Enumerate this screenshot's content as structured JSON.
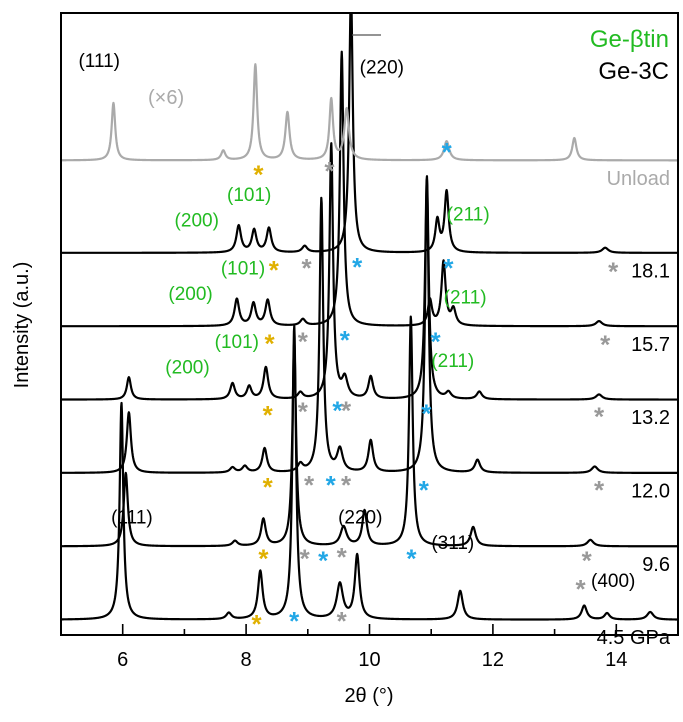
{
  "chart_data": {
    "type": "line",
    "xlabel": "2θ (°)",
    "ylabel": "Intensity (a.u.)",
    "xlim": [
      5,
      15
    ],
    "ylim": [
      -0.2,
      9.55
    ],
    "xticks": [
      6,
      8,
      10,
      12,
      14
    ],
    "grid": false,
    "legend": [
      {
        "label": "Ge-βtin",
        "color": "#22bb22"
      },
      {
        "label": "Ge-3C",
        "color": "#000000"
      }
    ],
    "scale_note": "(×6)",
    "marker_symbol": "*",
    "colors": {
      "unload": "#aaaaaa",
      "pressure": "#000000",
      "betatin_label": "#22bb22",
      "marker_yellow": "#e0b000",
      "marker_gray": "#999999",
      "marker_blue": "#22a7e6"
    },
    "series": [
      {
        "name": "4.5 GPa",
        "offset": 0.0,
        "color": "#000000",
        "baseline": 0.04,
        "peaks": [
          [
            5.98,
            3.4,
            0.035
          ],
          [
            7.72,
            0.1,
            0.05
          ],
          [
            8.23,
            0.75,
            0.045
          ],
          [
            8.78,
            4.6,
            0.035
          ],
          [
            9.52,
            0.55,
            0.06
          ],
          [
            9.8,
            1.0,
            0.045
          ],
          [
            11.47,
            0.45,
            0.05
          ],
          [
            13.48,
            0.22,
            0.05
          ],
          [
            13.85,
            0.1,
            0.05
          ],
          [
            14.55,
            0.12,
            0.06
          ]
        ],
        "peak_labels": [
          {
            "text": "(111)",
            "x": 6.15,
            "y": 1.55,
            "color": "#000000"
          },
          {
            "text": "(220)",
            "x": 9.85,
            "y": 1.55,
            "color": "#000000"
          },
          {
            "text": "(311)",
            "x": 11.35,
            "y": 1.15,
            "color": "#000000"
          },
          {
            "text": "(400)",
            "x": 13.95,
            "y": 0.55,
            "color": "#000000"
          }
        ],
        "markers": [
          {
            "x": 8.17,
            "y": 0.05,
            "c": "yellow"
          },
          {
            "x": 8.78,
            "y": 0.1,
            "c": "blue"
          },
          {
            "x": 9.55,
            "y": 0.1,
            "c": "gray"
          },
          {
            "x": 13.42,
            "y": 0.6,
            "c": "gray"
          }
        ]
      },
      {
        "name": "9.6",
        "offset": 1.15,
        "color": "#000000",
        "baseline": 0.04,
        "peaks": [
          [
            6.05,
            1.15,
            0.04
          ],
          [
            7.82,
            0.08,
            0.05
          ],
          [
            8.28,
            0.42,
            0.045
          ],
          [
            8.78,
            3.2,
            0.035
          ],
          [
            9.58,
            0.3,
            0.06
          ],
          [
            9.92,
            0.55,
            0.045
          ],
          [
            10.67,
            3.6,
            0.035
          ],
          [
            11.68,
            0.3,
            0.05
          ],
          [
            13.58,
            0.1,
            0.06
          ]
        ],
        "peak_labels": [],
        "markers": [
          {
            "x": 8.28,
            "y": 1.08,
            "c": "yellow"
          },
          {
            "x": 8.95,
            "y": 1.08,
            "c": "gray"
          },
          {
            "x": 9.25,
            "y": 1.05,
            "c": "blue"
          },
          {
            "x": 9.55,
            "y": 1.1,
            "c": "gray"
          },
          {
            "x": 10.68,
            "y": 1.08,
            "c": "blue"
          },
          {
            "x": 13.52,
            "y": 1.05,
            "c": "gray"
          }
        ]
      },
      {
        "name": "12.0",
        "offset": 2.3,
        "color": "#000000",
        "baseline": 0.04,
        "peaks": [
          [
            6.1,
            0.95,
            0.04
          ],
          [
            7.78,
            0.08,
            0.05
          ],
          [
            7.98,
            0.1,
            0.05
          ],
          [
            8.3,
            0.38,
            0.045
          ],
          [
            8.88,
            0.12,
            0.05
          ],
          [
            9.22,
            4.3,
            0.035
          ],
          [
            9.52,
            0.35,
            0.055
          ],
          [
            10.02,
            0.5,
            0.045
          ],
          [
            10.93,
            4.6,
            0.035
          ],
          [
            11.75,
            0.2,
            0.05
          ],
          [
            13.65,
            0.1,
            0.06
          ]
        ],
        "peak_labels": [],
        "markers": [
          {
            "x": 8.35,
            "y": 2.2,
            "c": "yellow"
          },
          {
            "x": 9.02,
            "y": 2.23,
            "c": "gray"
          },
          {
            "x": 9.37,
            "y": 2.23,
            "c": "blue"
          },
          {
            "x": 9.62,
            "y": 2.23,
            "c": "gray"
          },
          {
            "x": 10.88,
            "y": 2.15,
            "c": "blue"
          },
          {
            "x": 13.72,
            "y": 2.15,
            "c": "gray"
          }
        ]
      },
      {
        "name": "13.2",
        "offset": 3.45,
        "color": "#000000",
        "baseline": 0.04,
        "peaks": [
          [
            6.1,
            0.35,
            0.04
          ],
          [
            7.78,
            0.25,
            0.045
          ],
          [
            8.05,
            0.2,
            0.045
          ],
          [
            8.32,
            0.5,
            0.045
          ],
          [
            8.88,
            0.1,
            0.05
          ],
          [
            9.38,
            4.0,
            0.035
          ],
          [
            9.6,
            0.3,
            0.055
          ],
          [
            10.02,
            0.35,
            0.045
          ],
          [
            10.93,
            3.5,
            0.035
          ],
          [
            11.28,
            0.1,
            0.05
          ],
          [
            11.78,
            0.12,
            0.05
          ],
          [
            13.72,
            0.08,
            0.06
          ]
        ],
        "peak_labels": [
          {
            "text": "(200)",
            "x": 7.05,
            "y": 3.9,
            "color": "#22bb22"
          },
          {
            "text": "(101)",
            "x": 7.85,
            "y": 4.3,
            "color": "#22bb22"
          },
          {
            "text": "(211)",
            "x": 11.35,
            "y": 4.0,
            "color": "#22bb22"
          }
        ],
        "markers": [
          {
            "x": 8.35,
            "y": 3.33,
            "c": "yellow"
          },
          {
            "x": 8.92,
            "y": 3.38,
            "c": "gray"
          },
          {
            "x": 9.48,
            "y": 3.4,
            "c": "blue"
          },
          {
            "x": 9.62,
            "y": 3.4,
            "c": "gray"
          },
          {
            "x": 10.92,
            "y": 3.35,
            "c": "blue"
          },
          {
            "x": 13.72,
            "y": 3.3,
            "c": "gray"
          }
        ]
      },
      {
        "name": "15.7",
        "offset": 4.6,
        "color": "#000000",
        "baseline": 0.04,
        "peaks": [
          [
            7.85,
            0.42,
            0.045
          ],
          [
            8.12,
            0.35,
            0.045
          ],
          [
            8.35,
            0.4,
            0.045
          ],
          [
            8.92,
            0.1,
            0.05
          ],
          [
            9.55,
            4.3,
            0.035
          ],
          [
            10.98,
            0.4,
            0.04
          ],
          [
            11.2,
            1.0,
            0.04
          ],
          [
            11.36,
            0.25,
            0.045
          ],
          [
            13.72,
            0.08,
            0.06
          ]
        ],
        "peak_labels": [
          {
            "text": "(200)",
            "x": 7.1,
            "y": 5.05,
            "color": "#22bb22"
          },
          {
            "text": "(101)",
            "x": 7.95,
            "y": 5.45,
            "color": "#22bb22"
          },
          {
            "text": "(211)",
            "x": 11.55,
            "y": 5.0,
            "color": "#22bb22"
          }
        ],
        "markers": [
          {
            "x": 8.38,
            "y": 4.45,
            "c": "yellow"
          },
          {
            "x": 8.92,
            "y": 4.48,
            "c": "gray"
          },
          {
            "x": 9.6,
            "y": 4.5,
            "c": "blue"
          },
          {
            "x": 11.07,
            "y": 4.48,
            "c": "blue"
          },
          {
            "x": 13.82,
            "y": 4.43,
            "c": "gray"
          }
        ]
      },
      {
        "name": "18.1",
        "offset": 5.75,
        "color": "#000000",
        "baseline": 0.04,
        "peaks": [
          [
            7.88,
            0.42,
            0.045
          ],
          [
            8.13,
            0.35,
            0.045
          ],
          [
            8.37,
            0.38,
            0.045
          ],
          [
            8.95,
            0.1,
            0.05
          ],
          [
            9.7,
            4.1,
            0.035
          ],
          [
            11.1,
            0.5,
            0.04
          ],
          [
            11.25,
            0.95,
            0.04
          ],
          [
            13.82,
            0.08,
            0.06
          ]
        ],
        "peak_labels": [
          {
            "text": "(200)",
            "x": 7.2,
            "y": 6.2,
            "color": "#22bb22"
          },
          {
            "text": "(101)",
            "x": 8.05,
            "y": 6.6,
            "color": "#22bb22"
          },
          {
            "text": "(211)",
            "x": 11.6,
            "y": 6.3,
            "color": "#22bb22"
          }
        ],
        "markers": [
          {
            "x": 8.45,
            "y": 5.6,
            "c": "yellow"
          },
          {
            "x": 8.98,
            "y": 5.63,
            "c": "gray"
          },
          {
            "x": 9.8,
            "y": 5.65,
            "c": "blue"
          },
          {
            "x": 11.28,
            "y": 5.63,
            "c": "blue"
          },
          {
            "x": 13.95,
            "y": 5.58,
            "c": "gray"
          }
        ]
      },
      {
        "name": "Unload",
        "offset": 7.2,
        "color": "#aaaaaa",
        "baseline": 0.04,
        "peaks": [
          [
            5.85,
            0.9,
            0.035
          ],
          [
            7.63,
            0.15,
            0.04
          ],
          [
            8.15,
            1.5,
            0.035
          ],
          [
            8.67,
            0.75,
            0.04
          ],
          [
            9.38,
            0.95,
            0.035
          ],
          [
            9.63,
            0.8,
            0.045
          ],
          [
            11.25,
            0.3,
            0.05
          ],
          [
            13.32,
            0.35,
            0.04
          ]
        ],
        "peak_labels": [
          {
            "text": "(111)",
            "x": 5.62,
            "y": 8.7,
            "color": "#000000"
          },
          {
            "text": "(220)",
            "x": 10.2,
            "y": 8.6,
            "color": "#000000"
          }
        ],
        "markers": [
          {
            "x": 8.2,
            "y": 7.1,
            "c": "yellow"
          },
          {
            "x": 9.35,
            "y": 7.15,
            "c": "gray"
          },
          {
            "x": 11.25,
            "y": 7.45,
            "c": "blue"
          }
        ]
      }
    ]
  }
}
